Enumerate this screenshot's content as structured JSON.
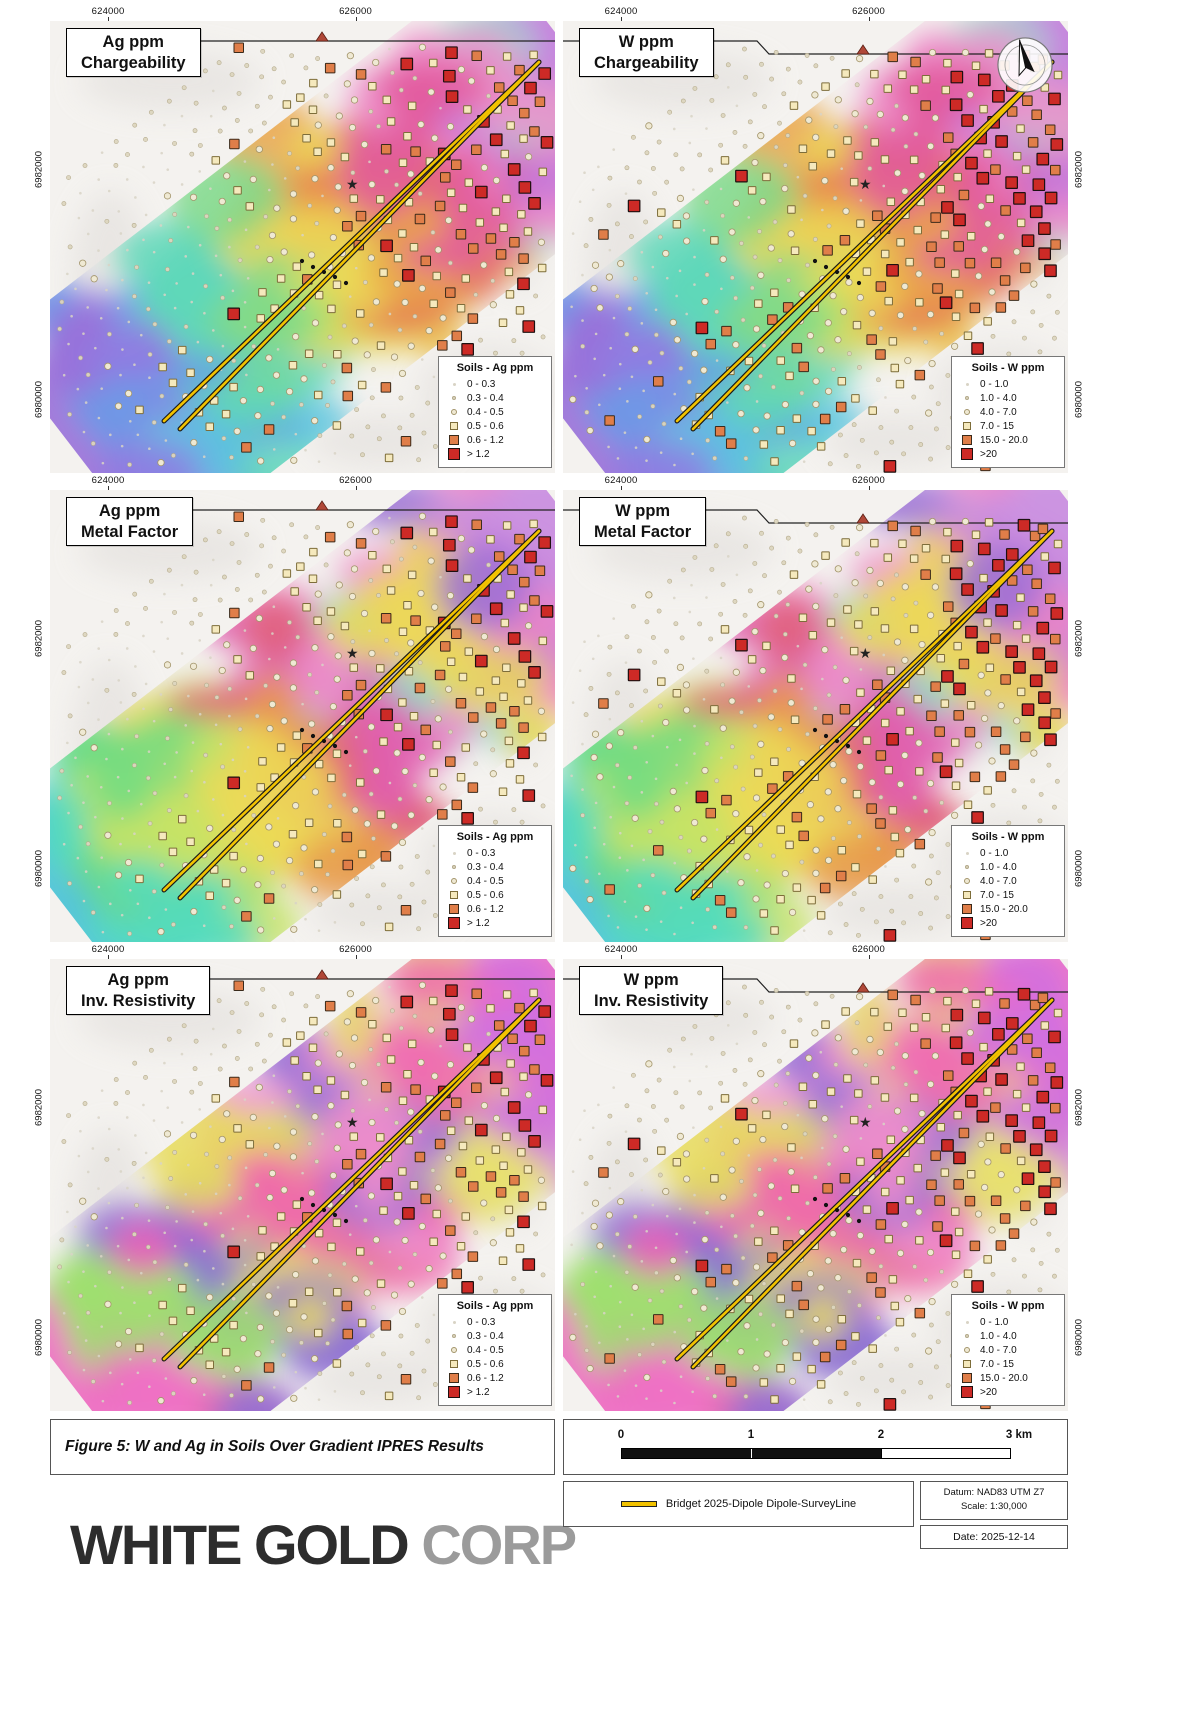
{
  "axes": {
    "x_labels": [
      "624000",
      "626000"
    ],
    "y_labels": [
      "6982000",
      "6980000"
    ]
  },
  "panels": [
    {
      "title_line1": "Ag ppm",
      "title_line2": "Chargeability",
      "legend_title": "Soils - Ag ppm",
      "metal": "ag",
      "raster": "chargeability",
      "north_arrow": false,
      "legend_items": [
        "0 - 0.3",
        "0.3 - 0.4",
        "0.4 - 0.5",
        "0.5 - 0.6",
        "0.6 - 1.2",
        "> 1.2"
      ]
    },
    {
      "title_line1": "W ppm",
      "title_line2": "Chargeability",
      "legend_title": "Soils - W ppm",
      "metal": "w",
      "raster": "chargeability",
      "north_arrow": true,
      "legend_items": [
        "0 - 1.0",
        "1.0 - 4.0",
        "4.0 - 7.0",
        "7.0 - 15",
        "15.0 - 20.0",
        ">20"
      ]
    },
    {
      "title_line1": "Ag ppm",
      "title_line2": "Metal Factor",
      "legend_title": "Soils - Ag ppm",
      "metal": "ag",
      "raster": "metal_factor",
      "north_arrow": false,
      "legend_items": [
        "0 - 0.3",
        "0.3 - 0.4",
        "0.4 - 0.5",
        "0.5 - 0.6",
        "0.6 - 1.2",
        "> 1.2"
      ]
    },
    {
      "title_line1": "W ppm",
      "title_line2": "Metal Factor",
      "legend_title": "Soils - W ppm",
      "metal": "w",
      "raster": "metal_factor",
      "north_arrow": false,
      "legend_items": [
        "0 - 1.0",
        "1.0 - 4.0",
        "4.0 - 7.0",
        "7.0 - 15",
        "15.0 - 20.0",
        ">20"
      ]
    },
    {
      "title_line1": "Ag ppm",
      "title_line2": "Inv. Resistivity",
      "legend_title": "Soils - Ag ppm",
      "metal": "ag",
      "raster": "inv_resistivity",
      "north_arrow": false,
      "legend_items": [
        "0 - 0.3",
        "0.3 - 0.4",
        "0.4 - 0.5",
        "0.5 - 0.6",
        "0.6 - 1.2",
        "> 1.2"
      ]
    },
    {
      "title_line1": "W ppm",
      "title_line2": "Inv. Resistivity",
      "legend_title": "Soils - W ppm",
      "metal": "w",
      "raster": "inv_resistivity",
      "north_arrow": false,
      "legend_items": [
        "0 - 1.0",
        "1.0 - 4.0",
        "4.0 - 7.0",
        "7.0 - 15",
        "15.0 - 20.0",
        ">20"
      ]
    }
  ],
  "figure": {
    "caption": "Figure 5: W and Ag in Soils Over Gradient IPRES Results",
    "scalebar": {
      "labels": [
        "0",
        "1",
        "2",
        "3 km"
      ]
    },
    "survey_legend": "Bridget 2025-Dipole Dipole-SurveyLine",
    "datum_line1": "Datum: NAD83 UTM Z7",
    "datum_line2": "Scale: 1:30,000",
    "date": "Date: 2025-12-14"
  },
  "logo": {
    "word1": "WHITE",
    "word2": "GOLD",
    "word3": "CORP"
  },
  "colors": {
    "survey_line": "#f2c200",
    "soil_high": "#cd2a26",
    "soil_mid": "#e07e49",
    "soil_low": "#f5e9bd",
    "logo_gold": "#bd9e62"
  }
}
